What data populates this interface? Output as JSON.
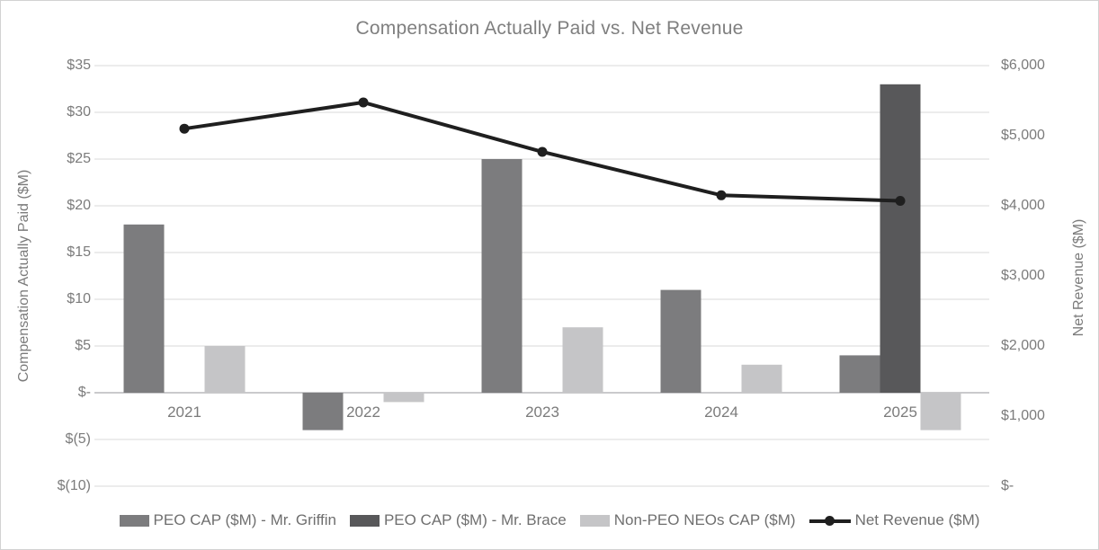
{
  "chart_data": {
    "type": "combo-bar-line",
    "title": "Compensation Actually Paid vs. Net Revenue",
    "categories": [
      "2021",
      "2022",
      "2023",
      "2024",
      "2025"
    ],
    "bar_series": [
      {
        "name": "PEO CAP ($M) - Mr. Griffin",
        "color": "#7c7c7e",
        "values": [
          18,
          -4,
          25,
          11,
          4
        ]
      },
      {
        "name": "PEO CAP ($M) - Mr. Brace",
        "color": "#58585a",
        "values": [
          null,
          null,
          null,
          null,
          33
        ]
      },
      {
        "name": "Non-PEO NEOs CAP ($M)",
        "color": "#c5c5c7",
        "values": [
          5,
          -1,
          7,
          3,
          -4
        ]
      }
    ],
    "line_series": {
      "name": "Net Revenue ($M)",
      "color": "#1f1f1f",
      "axis": "right",
      "values": [
        5100,
        5475,
        4770,
        4150,
        4070
      ]
    },
    "left_axis": {
      "title": "Compensation Actually Paid ($M)",
      "ticks": [
        "$35",
        "$30",
        "$25",
        "$20",
        "$15",
        "$10",
        "$5",
        "$-",
        "$(5)",
        "$(10)"
      ],
      "tick_values": [
        35,
        30,
        25,
        20,
        15,
        10,
        5,
        0,
        -5,
        -10
      ],
      "range": [
        -10,
        35
      ]
    },
    "right_axis": {
      "title": "Net Revenue ($M)",
      "ticks": [
        "$6,000",
        "$5,000",
        "$4,000",
        "$3,000",
        "$2,000",
        "$1,000",
        "$-"
      ],
      "tick_values": [
        6000,
        5000,
        4000,
        3000,
        2000,
        1000,
        0
      ],
      "range": [
        0,
        6000
      ]
    },
    "grid": true,
    "legend_position": "bottom",
    "colors": {
      "gridline": "#d9d9d9",
      "zero_axis_line": "#ababad",
      "title_text": "#7f7f7f",
      "tick_text": "#7b7b7b",
      "legend_text": "#6f6f6f"
    }
  }
}
